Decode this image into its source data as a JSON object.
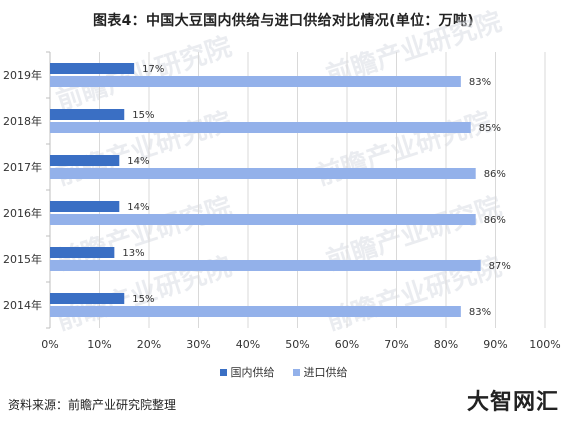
{
  "title": "图表4：中国大豆国内供给与进口供给对比情况(单位：万吨)",
  "source": "资料来源：前瞻产业研究院整理",
  "brand": "大智网汇",
  "watermark": "前瞻产业研究院",
  "colors": {
    "domestic": "#3a6fc4",
    "import": "#93b1ea",
    "grid": "#d9d9d9",
    "axis": "#bfbfbf"
  },
  "chart_data": {
    "type": "bar",
    "orientation": "horizontal",
    "categories": [
      "2019年",
      "2018年",
      "2017年",
      "2016年",
      "2015年",
      "2014年"
    ],
    "series": [
      {
        "name": "国内供给",
        "values": [
          17,
          15,
          14,
          14,
          13,
          15
        ],
        "labels": [
          "17%",
          "15%",
          "14%",
          "14%",
          "13%",
          "15%"
        ]
      },
      {
        "name": "进口供给",
        "values": [
          83,
          85,
          86,
          86,
          87,
          83
        ],
        "labels": [
          "83%",
          "85%",
          "86%",
          "86%",
          "87%",
          "83%"
        ]
      }
    ],
    "xlim": [
      0,
      100
    ],
    "xticks": [
      "0%",
      "10%",
      "20%",
      "30%",
      "40%",
      "50%",
      "60%",
      "70%",
      "80%",
      "90%",
      "100%"
    ],
    "grid": true,
    "legend": "bottom"
  }
}
